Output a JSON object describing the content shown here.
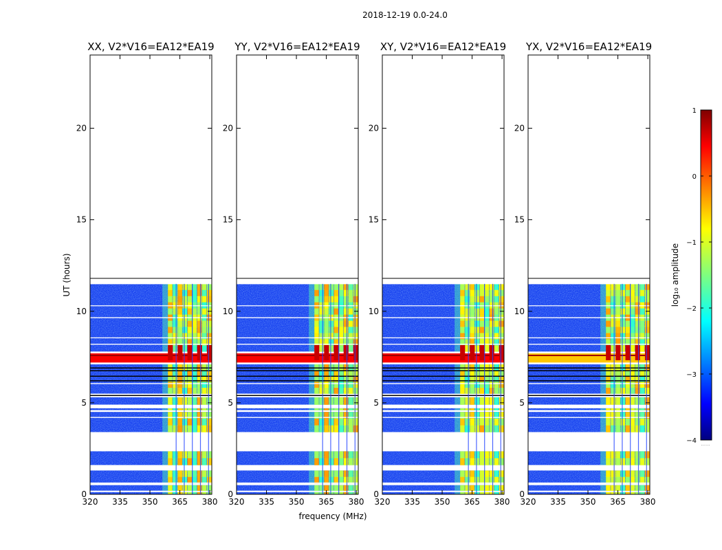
{
  "figure": {
    "suptitle": "2018-12-19 0.0-24.0",
    "ylabel": "UT (hours)",
    "xlabel": "frequency (MHz)",
    "colorbar_label": "log₁₀ amplitude",
    "colorbar_ticks": [
      "1",
      "0",
      "−1",
      "−2",
      "−3",
      "−4"
    ],
    "colorbar_footer": "......"
  },
  "chart_data": [
    {
      "type": "heatmap",
      "title": "XX, V2*V16=EA12*EA19",
      "xlabel": "frequency (MHz)",
      "ylabel": "UT (hours)",
      "xlim": [
        320,
        381
      ],
      "ylim": [
        0,
        24
      ],
      "xticks": [
        320,
        335,
        350,
        365,
        380
      ],
      "yticks": [
        0,
        5,
        10,
        15,
        20
      ],
      "colormap": "jet",
      "clim": [
        -4,
        1
      ],
      "data_extent_hours": [
        0,
        11.5
      ],
      "band_start_mhz": 359,
      "hot_band_hours": [
        7.2,
        7.7
      ]
    },
    {
      "type": "heatmap",
      "title": "YY, V2*V16=EA12*EA19",
      "xlabel": "frequency (MHz)",
      "ylabel": "UT (hours)",
      "xlim": [
        320,
        381
      ],
      "ylim": [
        0,
        24
      ],
      "xticks": [
        320,
        335,
        350,
        365,
        380
      ],
      "yticks": [
        0,
        5,
        10,
        15,
        20
      ],
      "colormap": "jet",
      "clim": [
        -4,
        1
      ],
      "data_extent_hours": [
        0,
        11.5
      ],
      "band_start_mhz": 359,
      "hot_band_hours": [
        7.2,
        7.7
      ]
    },
    {
      "type": "heatmap",
      "title": "XY, V2*V16=EA12*EA19",
      "xlabel": "frequency (MHz)",
      "ylabel": "UT (hours)",
      "xlim": [
        320,
        381
      ],
      "ylim": [
        0,
        24
      ],
      "xticks": [
        320,
        335,
        350,
        365,
        380
      ],
      "yticks": [
        0,
        5,
        10,
        15,
        20
      ],
      "colormap": "jet",
      "clim": [
        -4,
        1
      ],
      "data_extent_hours": [
        0,
        11.5
      ],
      "band_start_mhz": 359,
      "hot_band_hours": [
        7.2,
        7.7
      ]
    },
    {
      "type": "heatmap",
      "title": "YX, V2*V16=EA12*EA19",
      "xlabel": "frequency (MHz)",
      "ylabel": "UT (hours)",
      "xlim": [
        320,
        381
      ],
      "ylim": [
        0,
        24
      ],
      "xticks": [
        320,
        335,
        350,
        365,
        380
      ],
      "yticks": [
        0,
        5,
        10,
        15,
        20
      ],
      "colormap": "jet",
      "clim": [
        -4,
        1
      ],
      "data_extent_hours": [
        0,
        11.5
      ],
      "band_start_mhz": 359,
      "hot_band_hours": [
        7.2,
        7.7
      ]
    }
  ]
}
